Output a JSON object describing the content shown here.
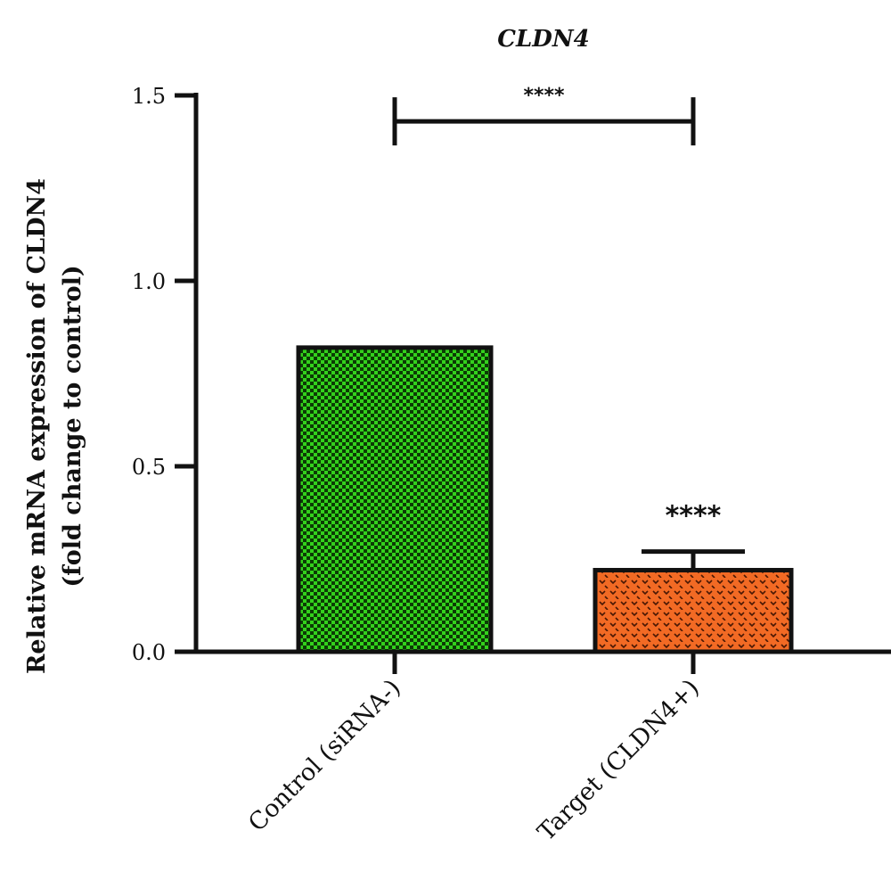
{
  "chart_data": {
    "type": "bar",
    "title": "CLDN4",
    "ylabel_line1": "Relative mRNA expression of CLDN4",
    "ylabel_line2": "(fold change to control)",
    "xlabel": "",
    "ylim": [
      0,
      1.5
    ],
    "yticks": [
      0.0,
      0.5,
      1.0,
      1.5
    ],
    "ytick_labels": [
      "0.0",
      "0.5",
      "1.0",
      "1.5"
    ],
    "grid": false,
    "categories": [
      "Control (siRNA-)",
      "Target (CLDN4+)"
    ],
    "values": [
      0.82,
      0.22
    ],
    "error_upper": [
      null,
      0.27
    ],
    "bar_colors": [
      "#33d11c",
      "#f26a24"
    ],
    "bar_pattern_colors": [
      "#0c3a05",
      "#4a1804"
    ],
    "bar_annotations": [
      "",
      "****"
    ],
    "comparison": {
      "from_category": 0,
      "to_category": 1,
      "y_value": 1.43,
      "label": "****"
    }
  }
}
